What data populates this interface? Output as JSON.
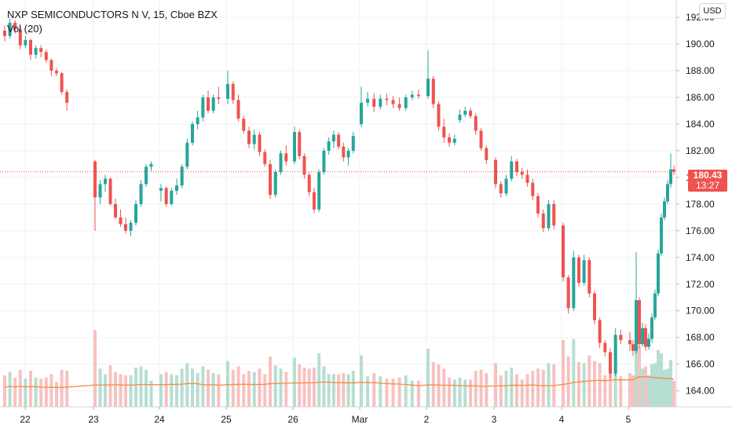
{
  "legend": {
    "symbol_line": "NXP SEMICONDUCTORS N V, 15, Cboe BZX",
    "volume_line": "Vol (20)"
  },
  "currency_badge": "USD",
  "last_price": {
    "value": "180.43",
    "countdown": "13:27"
  },
  "colors": {
    "up": "#26a69a",
    "down": "#ef5350",
    "up_volume": "#a5d6c7",
    "down_volume": "#f5b3b2",
    "volume_ma": "#f48c42",
    "grid": "#eef0f3",
    "last_price_line": "#ef5350"
  },
  "chart_data": {
    "type": "candlestick",
    "title": "NXP SEMICONDUCTORS N V, 15, Cboe BZX",
    "interval": "15",
    "currency": "USD",
    "y_axis": {
      "ticks": [
        "164.00",
        "166.00",
        "168.00",
        "170.00",
        "172.00",
        "174.00",
        "176.00",
        "178.00",
        "180.00",
        "182.00",
        "184.00",
        "186.00",
        "188.00",
        "190.00",
        "192.00"
      ],
      "range": [
        162.8,
        193.3
      ]
    },
    "x_axis": {
      "ticks": [
        "22",
        "23",
        "24",
        "25",
        "26",
        "Mar",
        "2",
        "3",
        "4",
        "5"
      ]
    },
    "last_price": 180.43,
    "indicators": [
      {
        "name": "Vol",
        "length": 20
      }
    ],
    "sessions": [
      {
        "label": "22",
        "ohlc": [
          [
            191.0,
            191.4,
            190.2,
            190.6
          ],
          [
            190.6,
            191.9,
            190.4,
            191.6
          ],
          [
            191.6,
            191.8,
            190.8,
            191.1
          ],
          [
            191.1,
            191.3,
            189.6,
            189.9
          ],
          [
            189.9,
            190.6,
            189.7,
            190.3
          ],
          [
            190.3,
            190.4,
            188.8,
            189.2
          ],
          [
            189.2,
            189.9,
            188.9,
            189.7
          ],
          [
            189.7,
            189.9,
            189.0,
            189.4
          ],
          [
            189.4,
            189.6,
            188.6,
            188.8
          ],
          [
            188.8,
            188.9,
            187.6,
            188.0
          ],
          [
            188.0,
            188.2,
            187.6,
            187.8
          ],
          [
            187.8,
            187.9,
            186.2,
            186.4
          ],
          [
            186.4,
            186.6,
            185.0,
            185.6
          ]
        ]
      },
      {
        "label": "23",
        "ohlc": [
          [
            181.2,
            181.3,
            176.0,
            178.5
          ],
          [
            178.5,
            179.8,
            178.0,
            179.5
          ],
          [
            179.5,
            180.2,
            178.9,
            179.9
          ],
          [
            179.9,
            180.0,
            177.9,
            178.0
          ],
          [
            178.0,
            178.4,
            176.9,
            177.0
          ],
          [
            177.0,
            177.6,
            176.3,
            176.5
          ],
          [
            176.5,
            177.0,
            175.8,
            176.0
          ],
          [
            176.0,
            176.8,
            175.6,
            176.6
          ],
          [
            176.6,
            178.3,
            176.4,
            178.0
          ],
          [
            178.0,
            179.8,
            177.8,
            179.5
          ],
          [
            179.5,
            181.0,
            179.3,
            180.8
          ],
          [
            180.8,
            181.2,
            180.5,
            181.0
          ]
        ]
      },
      {
        "label": "24",
        "ohlc": [
          [
            179.0,
            179.5,
            178.2,
            179.2
          ],
          [
            179.2,
            179.3,
            177.8,
            178.0
          ],
          [
            178.0,
            179.2,
            177.9,
            179.0
          ],
          [
            179.0,
            179.9,
            178.7,
            179.4
          ],
          [
            179.4,
            181.0,
            179.2,
            180.8
          ],
          [
            180.8,
            182.9,
            180.6,
            182.6
          ],
          [
            182.6,
            184.2,
            182.4,
            184.0
          ],
          [
            184.0,
            185.0,
            183.6,
            184.5
          ],
          [
            184.5,
            186.2,
            184.2,
            186.0
          ],
          [
            186.0,
            186.5,
            184.8,
            185.0
          ],
          [
            185.0,
            186.2,
            184.8,
            186.0
          ],
          [
            186.0,
            186.8,
            185.5,
            185.9
          ]
        ]
      },
      {
        "label": "25",
        "ohlc": [
          [
            185.9,
            188.0,
            185.5,
            187.0
          ],
          [
            187.0,
            187.2,
            185.5,
            185.8
          ],
          [
            185.8,
            186.2,
            184.2,
            184.4
          ],
          [
            184.4,
            184.6,
            183.3,
            183.5
          ],
          [
            183.5,
            183.8,
            182.2,
            182.5
          ],
          [
            182.5,
            183.6,
            182.1,
            183.2
          ],
          [
            183.2,
            183.4,
            181.6,
            181.9
          ],
          [
            181.9,
            182.1,
            180.8,
            181.0
          ],
          [
            181.0,
            181.3,
            178.4,
            178.7
          ],
          [
            178.7,
            180.6,
            178.5,
            180.4
          ],
          [
            180.4,
            182.0,
            180.2,
            181.8
          ],
          [
            181.8,
            182.4,
            180.9,
            181.2
          ]
        ]
      },
      {
        "label": "26",
        "ohlc": [
          [
            181.2,
            183.8,
            181.0,
            183.4
          ],
          [
            183.4,
            183.6,
            181.4,
            181.6
          ],
          [
            181.6,
            181.8,
            179.9,
            180.2
          ],
          [
            180.2,
            180.4,
            178.6,
            178.9
          ],
          [
            178.9,
            179.2,
            177.3,
            177.6
          ],
          [
            177.6,
            180.6,
            177.4,
            180.4
          ],
          [
            180.4,
            182.2,
            180.2,
            182.0
          ],
          [
            182.0,
            183.0,
            181.7,
            182.7
          ],
          [
            182.7,
            183.5,
            182.2,
            183.2
          ],
          [
            183.2,
            183.4,
            182.1,
            182.3
          ],
          [
            182.3,
            182.6,
            181.2,
            181.5
          ],
          [
            181.5,
            182.2,
            180.9,
            182.0
          ],
          [
            182.0,
            183.4,
            181.8,
            183.1
          ]
        ]
      },
      {
        "label": "Mar",
        "ohlc": [
          [
            184.0,
            186.8,
            183.8,
            185.6
          ],
          [
            185.6,
            186.4,
            185.3,
            185.9
          ],
          [
            185.9,
            186.3,
            184.9,
            185.3
          ],
          [
            185.3,
            186.2,
            185.1,
            185.9
          ],
          [
            185.9,
            186.3,
            185.4,
            185.8
          ],
          [
            185.8,
            186.1,
            185.2,
            185.5
          ],
          [
            185.5,
            186.0,
            185.0,
            185.2
          ],
          [
            185.2,
            186.2,
            185.0,
            186.0
          ],
          [
            186.0,
            186.5,
            185.8,
            186.2
          ],
          [
            186.2,
            186.6,
            185.9,
            186.1
          ]
        ]
      },
      {
        "label": "2",
        "ohlc": [
          [
            186.1,
            189.5,
            185.9,
            187.4
          ],
          [
            187.4,
            187.6,
            185.2,
            185.5
          ],
          [
            185.5,
            185.7,
            183.5,
            183.8
          ],
          [
            183.8,
            184.4,
            182.6,
            183.0
          ],
          [
            183.0,
            183.3,
            182.3,
            182.6
          ],
          [
            182.6,
            183.2,
            182.4,
            182.9
          ],
          [
            184.3,
            185.1,
            184.1,
            184.7
          ],
          [
            184.7,
            185.3,
            184.5,
            185.0
          ],
          [
            185.0,
            185.2,
            184.4,
            184.6
          ],
          [
            184.6,
            184.8,
            183.2,
            183.5
          ],
          [
            183.5,
            183.7,
            182.0,
            182.2
          ],
          [
            182.2,
            182.4,
            181.0,
            181.3
          ]
        ]
      },
      {
        "label": "3",
        "ohlc": [
          [
            181.3,
            181.5,
            179.2,
            179.5
          ],
          [
            179.5,
            179.7,
            178.5,
            178.8
          ],
          [
            178.8,
            180.2,
            178.6,
            179.9
          ],
          [
            179.9,
            181.6,
            179.7,
            181.2
          ],
          [
            181.2,
            181.4,
            180.1,
            180.4
          ],
          [
            180.4,
            180.7,
            179.9,
            180.2
          ],
          [
            180.2,
            180.6,
            179.3,
            179.6
          ],
          [
            179.6,
            179.9,
            178.3,
            178.6
          ],
          [
            178.6,
            178.8,
            177.0,
            177.3
          ],
          [
            177.3,
            177.6,
            175.9,
            176.2
          ],
          [
            176.2,
            178.3,
            176.0,
            178.0
          ],
          [
            178.0,
            178.3,
            176.1,
            176.4
          ]
        ]
      },
      {
        "label": "4",
        "ohlc": [
          [
            176.4,
            176.6,
            172.2,
            172.5
          ],
          [
            172.5,
            172.7,
            169.8,
            170.2
          ],
          [
            170.2,
            174.5,
            170.0,
            174.0
          ],
          [
            174.0,
            174.2,
            171.8,
            172.1
          ],
          [
            172.1,
            174.2,
            171.9,
            173.8
          ],
          [
            173.8,
            174.0,
            171.0,
            171.3
          ],
          [
            171.3,
            171.5,
            169.0,
            169.3
          ],
          [
            169.3,
            169.5,
            167.2,
            167.6
          ],
          [
            167.6,
            167.8,
            166.6,
            166.9
          ],
          [
            166.9,
            167.2,
            164.9,
            165.3
          ],
          [
            165.3,
            168.7,
            165.1,
            168.2
          ],
          [
            168.2,
            168.6,
            167.5,
            167.8
          ]
        ]
      },
      {
        "label": "5",
        "ohlc": [
          [
            167.8,
            168.4,
            167.0,
            167.5
          ],
          [
            167.5,
            167.8,
            166.6,
            167.0
          ],
          [
            167.0,
            174.4,
            166.8,
            170.8
          ],
          [
            170.8,
            171.0,
            167.2,
            167.5
          ],
          [
            167.5,
            169.1,
            167.3,
            168.7
          ],
          [
            168.7,
            169.0,
            167.0,
            167.3
          ],
          [
            167.3,
            168.3,
            167.1,
            167.9
          ],
          [
            167.9,
            169.8,
            167.6,
            169.5
          ],
          [
            169.5,
            171.6,
            169.3,
            171.3
          ],
          [
            171.3,
            174.6,
            171.1,
            174.3
          ],
          [
            174.3,
            177.3,
            174.1,
            177.0
          ],
          [
            177.0,
            178.5,
            176.8,
            178.2
          ],
          [
            178.2,
            179.8,
            178.0,
            179.5
          ],
          [
            179.5,
            181.8,
            179.2,
            180.6
          ],
          [
            180.6,
            180.9,
            180.2,
            180.43
          ]
        ]
      }
    ]
  }
}
